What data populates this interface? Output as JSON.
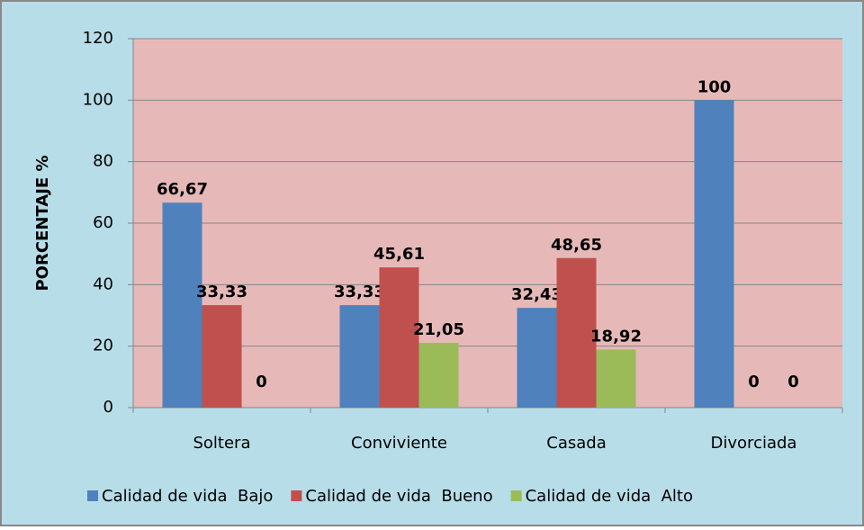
{
  "chart_data": {
    "type": "bar",
    "y_label": "PORCENTAJE %",
    "categories": [
      "Soltera",
      "Conviviente",
      "Casada",
      "Divorciada"
    ],
    "series": [
      {
        "name": "Calidad de vida  Bajo",
        "color": "#4f81bd",
        "values": [
          66.67,
          33.33,
          32.43,
          100
        ],
        "value_labels": [
          "66,67",
          "33,33",
          "32,43",
          "100"
        ]
      },
      {
        "name": "Calidad de vida  Bueno",
        "color": "#c0504d",
        "values": [
          33.33,
          45.61,
          48.65,
          0
        ],
        "value_labels": [
          "33,33",
          "45,61",
          "48,65",
          "0"
        ]
      },
      {
        "name": "Calidad de vida  Alto",
        "color": "#9bbb59",
        "values": [
          0,
          21.05,
          18.92,
          0
        ],
        "value_labels": [
          "0",
          "21,05",
          "18,92",
          "0"
        ]
      }
    ],
    "ylim": [
      0,
      120
    ],
    "yticks": [
      0,
      20,
      40,
      60,
      80,
      100,
      120
    ],
    "grid": true,
    "legend": "bottom"
  }
}
